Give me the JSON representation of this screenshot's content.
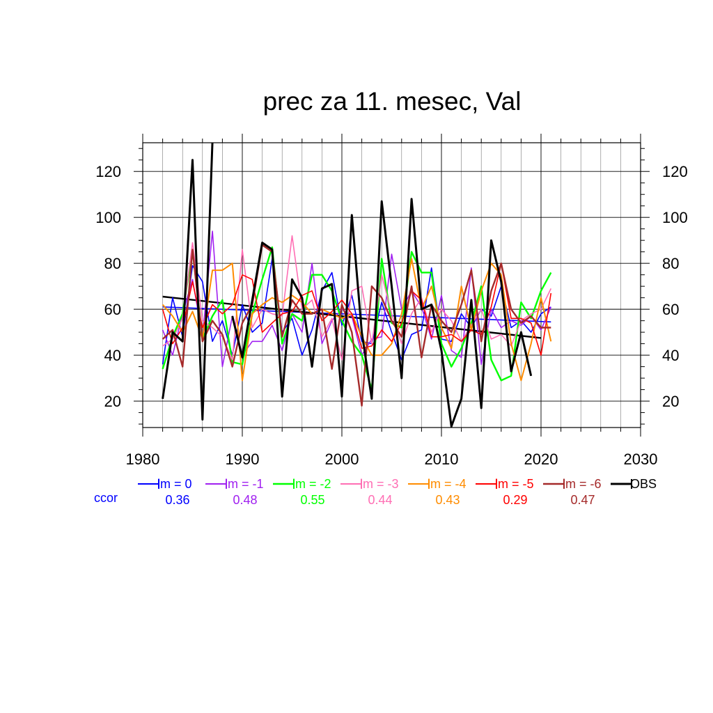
{
  "chart_data": {
    "type": "line",
    "title": "prec za 11. mesec, Val",
    "xlabel": "",
    "ylabel": "",
    "xlim": [
      1980,
      2030
    ],
    "ylim": [
      8.5,
      132.5
    ],
    "xticks": [
      1980,
      1990,
      2000,
      2010,
      2020,
      2030
    ],
    "yticks": [
      20,
      40,
      60,
      80,
      100,
      120
    ],
    "grid": true,
    "legend_position": "bottom",
    "ccor_label": "ccor",
    "series": [
      {
        "name": "lm = 0",
        "color": "#0000ff",
        "width": 1.6,
        "ccor": "0.36",
        "x": [
          1982,
          1983,
          1984,
          1985,
          1986,
          1987,
          1988,
          1989,
          1990,
          1991,
          1992,
          1993,
          1994,
          1995,
          1996,
          1997,
          1998,
          1999,
          2000,
          2001,
          2002,
          2003,
          2004,
          2005,
          2006,
          2007,
          2008,
          2009,
          2010,
          2011,
          2012,
          2013,
          2014,
          2015,
          2016,
          2017,
          2018,
          2019,
          2020,
          2021
        ],
        "y": [
          36,
          65,
          48,
          79,
          72,
          46,
          55,
          40,
          62,
          50,
          54,
          82,
          50,
          56,
          40,
          51,
          68,
          76,
          53,
          66,
          46,
          45,
          63,
          50,
          38,
          49,
          51,
          78,
          47,
          46,
          58,
          52,
          60,
          57,
          70,
          52,
          55,
          50,
          58,
          61
        ]
      },
      {
        "name": "lm = -1",
        "color": "#a020f0",
        "width": 1.6,
        "ccor": "0.48",
        "x": [
          1982,
          1983,
          1984,
          1985,
          1986,
          1987,
          1988,
          1989,
          1990,
          1991,
          1992,
          1993,
          1994,
          1995,
          1996,
          1997,
          1998,
          1999,
          2000,
          2001,
          2002,
          2003,
          2004,
          2005,
          2006,
          2007,
          2008,
          2009,
          2010,
          2011,
          2012,
          2013,
          2014,
          2015,
          2016,
          2017,
          2018,
          2019,
          2020,
          2021
        ],
        "y": [
          51,
          40,
          58,
          73,
          48,
          94,
          35,
          57,
          40,
          46,
          46,
          53,
          42,
          58,
          50,
          80,
          45,
          55,
          60,
          57,
          40,
          47,
          48,
          84,
          60,
          68,
          61,
          47,
          66,
          42,
          39,
          78,
          36,
          60,
          52,
          55,
          53,
          57,
          51,
          61
        ]
      },
      {
        "name": "lm = -2",
        "color": "#00ff00",
        "width": 2.4,
        "ccor": "0.55",
        "x": [
          1982,
          1983,
          1984,
          1985,
          1986,
          1987,
          1988,
          1989,
          1990,
          1991,
          1992,
          1993,
          1994,
          1995,
          1996,
          1997,
          1998,
          1999,
          2000,
          2001,
          2002,
          2003,
          2004,
          2005,
          2006,
          2007,
          2008,
          2009,
          2010,
          2011,
          2012,
          2013,
          2014,
          2015,
          2016,
          2017,
          2018,
          2019,
          2020,
          2021
        ],
        "y": [
          34,
          48,
          58,
          86,
          47,
          57,
          64,
          37,
          36,
          58,
          73,
          87,
          45,
          58,
          55,
          75,
          75,
          68,
          55,
          46,
          40,
          25,
          82,
          54,
          52,
          85,
          76,
          76,
          45,
          35,
          43,
          54,
          70,
          38,
          29,
          31,
          63,
          56,
          68,
          76
        ]
      },
      {
        "name": "lm = -3",
        "color": "#ff6eb4",
        "width": 1.6,
        "ccor": "0.44",
        "x": [
          1982,
          1983,
          1984,
          1985,
          1986,
          1987,
          1988,
          1989,
          1990,
          1991,
          1992,
          1993,
          1994,
          1995,
          1996,
          1997,
          1998,
          1999,
          2000,
          2001,
          2002,
          2003,
          2004,
          2005,
          2006,
          2007,
          2008,
          2009,
          2010,
          2011,
          2012,
          2013,
          2014,
          2015,
          2016,
          2017,
          2018,
          2019,
          2020,
          2021
        ],
        "y": [
          44,
          47,
          56,
          89,
          55,
          52,
          48,
          38,
          86,
          52,
          60,
          58,
          57,
          92,
          60,
          64,
          48,
          56,
          38,
          68,
          70,
          45,
          75,
          58,
          45,
          58,
          65,
          50,
          60,
          55,
          46,
          53,
          60,
          47,
          49,
          44,
          55,
          58,
          60,
          69
        ]
      },
      {
        "name": "lm = -4",
        "color": "#ff8c00",
        "width": 2.0,
        "ccor": "0.43",
        "x": [
          1982,
          1983,
          1984,
          1985,
          1986,
          1987,
          1988,
          1989,
          1990,
          1991,
          1992,
          1993,
          1994,
          1995,
          1996,
          1997,
          1998,
          1999,
          2000,
          2001,
          2002,
          2003,
          2004,
          2005,
          2006,
          2007,
          2008,
          2009,
          2010,
          2011,
          2012,
          2013,
          2014,
          2015,
          2016,
          2017,
          2018,
          2019,
          2020,
          2021
        ],
        "y": [
          62,
          57,
          50,
          59,
          47,
          77,
          77,
          80,
          29,
          58,
          62,
          65,
          63,
          66,
          63,
          58,
          60,
          58,
          56,
          58,
          48,
          40,
          40,
          45,
          58,
          82,
          60,
          70,
          52,
          43,
          70,
          51,
          68,
          80,
          75,
          45,
          29,
          45,
          65,
          46
        ]
      },
      {
        "name": "lm = -5",
        "color": "#ff0000",
        "width": 1.6,
        "ccor": "0.29",
        "x": [
          1982,
          1983,
          1984,
          1985,
          1986,
          1987,
          1988,
          1989,
          1990,
          1991,
          1992,
          1993,
          1994,
          1995,
          1996,
          1997,
          1998,
          1999,
          2000,
          2001,
          2002,
          2003,
          2004,
          2005,
          2006,
          2007,
          2008,
          2009,
          2010,
          2011,
          2012,
          2013,
          2014,
          2015,
          2016,
          2017,
          2018,
          2019,
          2020,
          2021
        ],
        "y": [
          60,
          45,
          52,
          72,
          52,
          62,
          58,
          62,
          75,
          73,
          50,
          54,
          58,
          59,
          66,
          68,
          55,
          59,
          64,
          58,
          43,
          44,
          51,
          46,
          54,
          68,
          64,
          48,
          48,
          49,
          46,
          51,
          49,
          61,
          80,
          56,
          56,
          54,
          40,
          67
        ]
      },
      {
        "name": "lm = -6",
        "color": "#a52a2a",
        "width": 2.4,
        "ccor": "0.47",
        "x": [
          1982,
          1983,
          1984,
          1985,
          1986,
          1987,
          1988,
          1989,
          1990,
          1991,
          1992,
          1993,
          1994,
          1995,
          1996,
          1997,
          1998,
          1999,
          2000,
          2001,
          2002,
          2003,
          2004,
          2005,
          2006,
          2007,
          2008,
          2009,
          2010,
          2011,
          2012,
          2013,
          2014,
          2015,
          2016,
          2017,
          2018,
          2019,
          2020,
          2021
        ],
        "y": [
          47,
          51,
          35,
          86,
          46,
          55,
          49,
          35,
          54,
          62,
          88,
          85,
          48,
          64,
          58,
          58,
          60,
          34,
          62,
          50,
          18,
          70,
          65,
          55,
          48,
          70,
          39,
          62,
          55,
          50,
          62,
          77,
          46,
          68,
          80,
          60,
          54,
          57,
          52,
          52
        ]
      },
      {
        "name": "OBS",
        "color": "#000000",
        "width": 3.0,
        "ccor": "",
        "x": [
          1982,
          1983,
          1984,
          1985,
          1986,
          1987,
          null,
          1989,
          1990,
          1991,
          1992,
          1993,
          1994,
          1995,
          1996,
          1997,
          1998,
          1999,
          2000,
          2001,
          2002,
          2003,
          2004,
          2005,
          2006,
          2007,
          2008,
          2009,
          2010,
          2011,
          2012,
          2013,
          2014,
          2015,
          2016,
          2017,
          2018,
          2019
        ],
        "y": [
          21,
          50,
          46,
          125,
          12,
          133,
          null,
          57,
          39,
          64,
          89,
          86,
          22,
          73,
          65,
          35,
          69,
          71,
          22,
          101,
          50,
          21,
          107,
          70,
          30,
          108,
          60,
          62,
          42,
          9,
          21,
          64,
          17,
          90,
          72,
          33,
          50,
          31
        ]
      }
    ],
    "trend_lines": [
      {
        "color": "#0000ff",
        "width": 1.6,
        "x": [
          1982,
          2021
        ],
        "y": [
          61,
          54.5
        ]
      },
      {
        "color": "#000000",
        "width": 2.4,
        "x": [
          1982,
          2020
        ],
        "y": [
          65.5,
          47.5
        ]
      }
    ]
  }
}
